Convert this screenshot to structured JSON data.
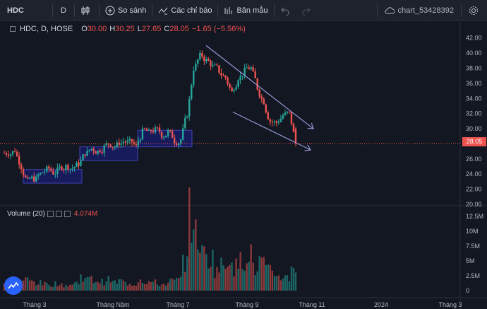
{
  "toolbar": {
    "symbol": "HDC",
    "interval": "D",
    "compare_label": "So sánh",
    "indicators_label": "Các chỉ báo",
    "templates_label": "Bản mẫu",
    "chart_name": "chart_53428392"
  },
  "legend": {
    "title": "HDC, D, HOSE",
    "o_label": "O",
    "o_value": "30.00",
    "h_label": "H",
    "h_value": "30.25",
    "l_label": "L",
    "l_value": "27.65",
    "c_label": "C",
    "c_value": "28.05",
    "change": "−1.65 (−5.56%)"
  },
  "volume_legend": {
    "label": "Volume (20)",
    "value": "4.074M"
  },
  "price_axis": {
    "ticks": [
      "42.00",
      "40.00",
      "38.00",
      "36.00",
      "34.00",
      "32.00",
      "30.00",
      "26.00",
      "24.00",
      "22.00",
      "20.00"
    ],
    "last_price": "28.05"
  },
  "volume_axis": {
    "ticks": [
      "12.5M",
      "10M",
      "7.5M",
      "5M",
      "2.5M",
      "0"
    ]
  },
  "time_axis": {
    "ticks": [
      "Tháng 3",
      "Tháng Năm",
      "Tháng 7",
      "Tháng 9",
      "Tháng 11",
      "2024",
      "Tháng 3"
    ]
  },
  "colors": {
    "up": "#26a69a",
    "down": "#ef5350",
    "box": "#1b1f8a",
    "channel": "#9598d6",
    "background": "#131722"
  },
  "chart_data": {
    "type": "candlestick",
    "symbol": "HDC",
    "interval": "D",
    "exchange": "HOSE",
    "ylim": [
      20,
      43
    ],
    "last_close": 28.05,
    "ohlc_last": {
      "open": 30.0,
      "high": 30.25,
      "low": 27.65,
      "close": 28.05
    },
    "weekly_closes": [
      26.8,
      27.2,
      25.0,
      23.0,
      23.4,
      24.0,
      24.6,
      24.2,
      24.8,
      25.0,
      24.8,
      25.4,
      26.8,
      27.4,
      27.0,
      27.6,
      28.0,
      27.8,
      28.3,
      28.2,
      27.6,
      29.6,
      29.4,
      29.8,
      29.2,
      29.6,
      28.4,
      28.6,
      32.0,
      38.0,
      39.6,
      39.0,
      38.2,
      37.6,
      36.8,
      34.8,
      36.8,
      37.6,
      38.0,
      35.4,
      33.6,
      31.0,
      30.8,
      31.8,
      32.0,
      28.05
    ],
    "weekly_volumes_m": [
      1.2,
      1.0,
      1.5,
      1.8,
      1.6,
      1.3,
      1.1,
      1.0,
      1.2,
      0.9,
      1.0,
      1.3,
      2.4,
      1.9,
      1.7,
      1.5,
      1.8,
      1.4,
      1.6,
      1.2,
      1.1,
      1.9,
      1.5,
      1.4,
      1.0,
      1.2,
      1.6,
      1.8,
      5.2,
      12.5,
      9.0,
      6.0,
      5.5,
      3.6,
      4.2,
      5.8,
      4.0,
      5.0,
      7.0,
      3.5,
      4.8,
      3.2,
      2.8,
      2.4,
      2.2,
      4.074
    ]
  }
}
